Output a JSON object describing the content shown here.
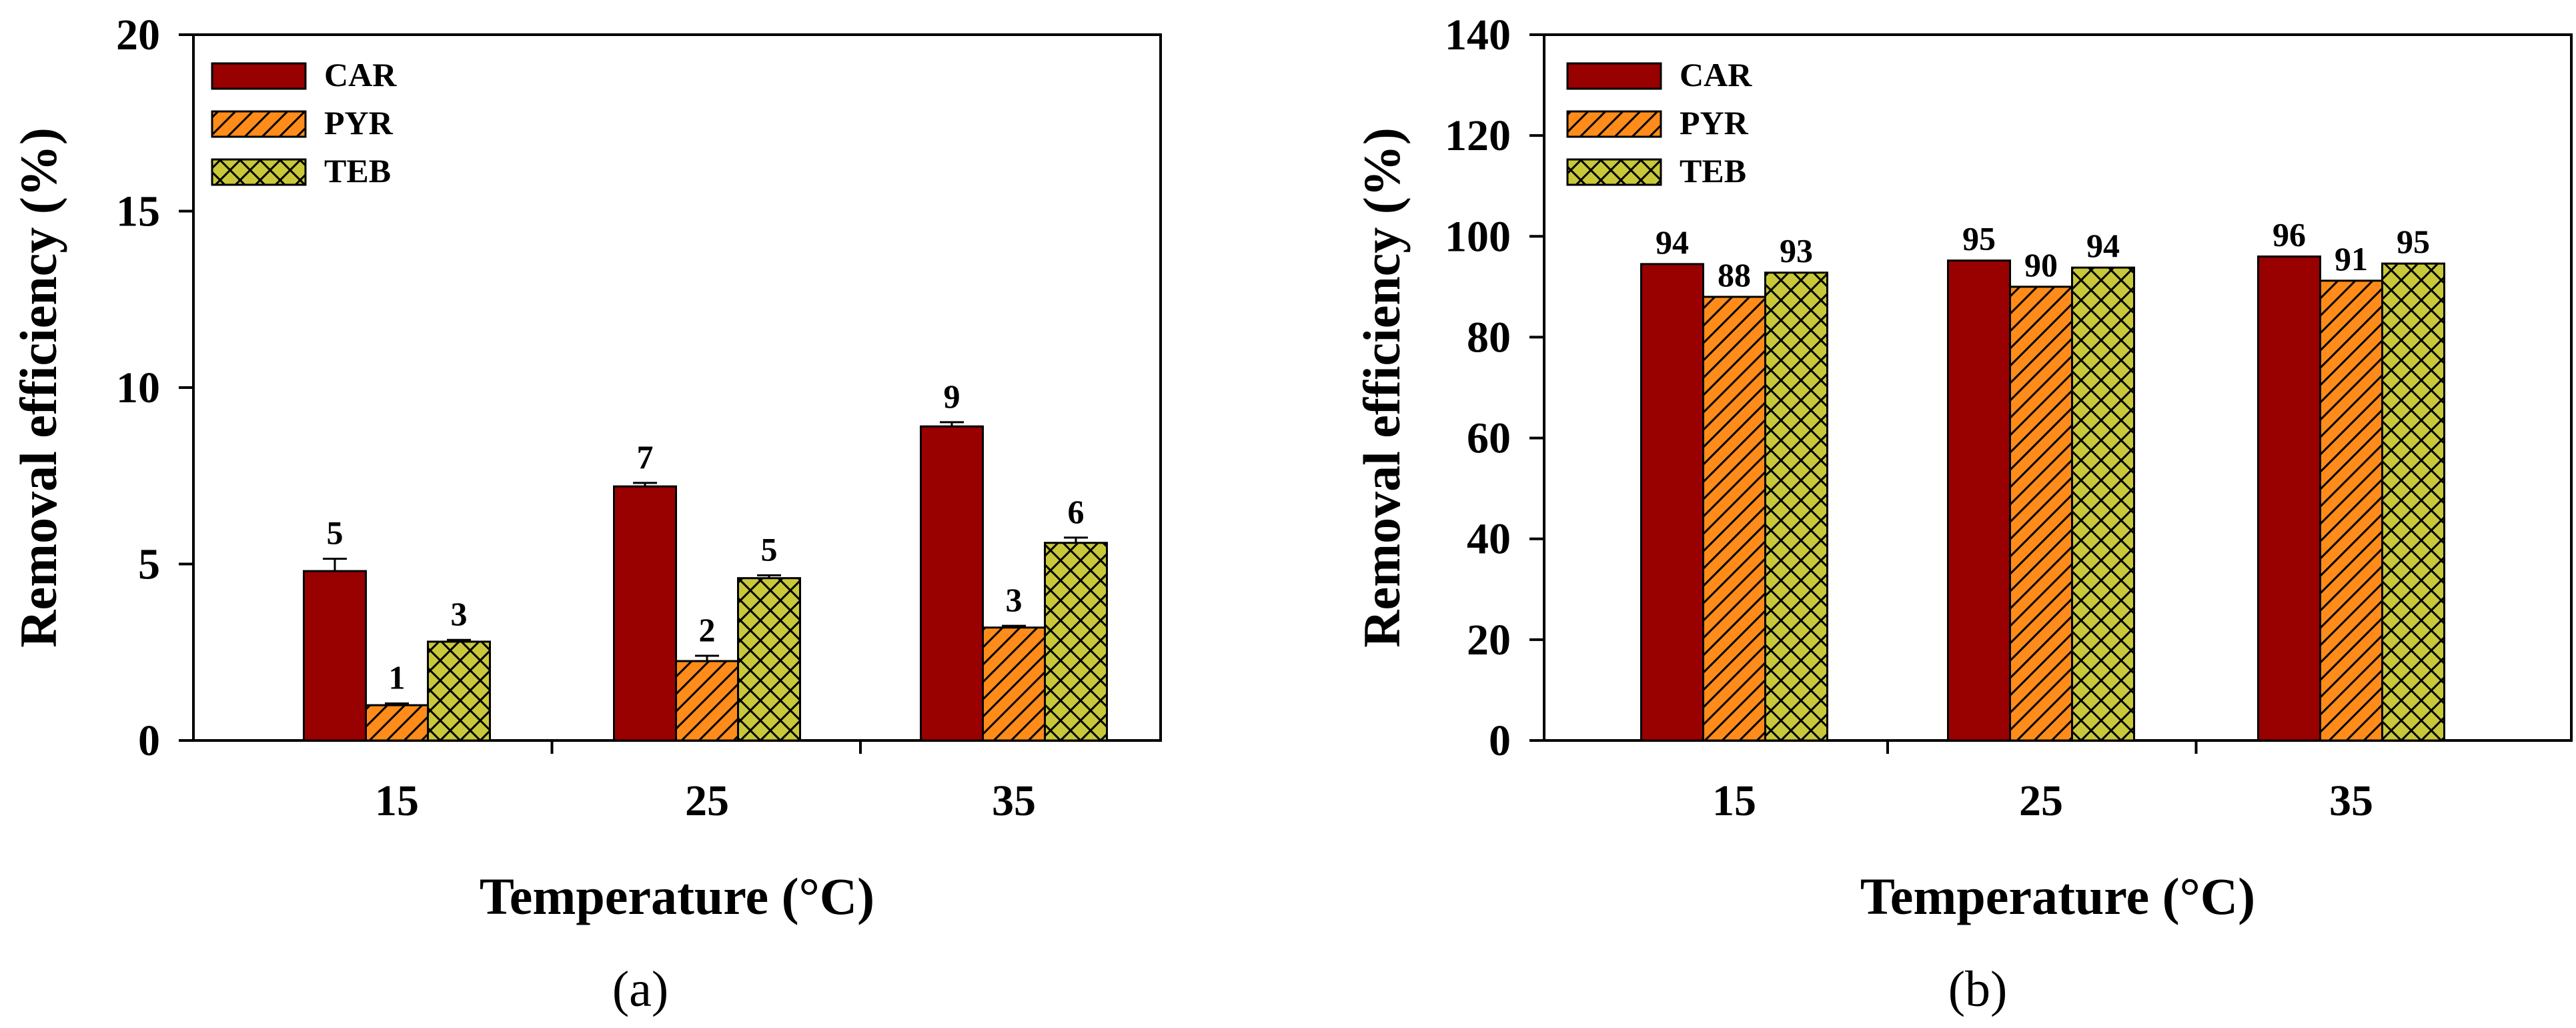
{
  "colors": {
    "CAR": "#990000",
    "PYR": "#ff8c1a",
    "TEB": "#c8c83a",
    "outline": "#000000",
    "background": "#ffffff"
  },
  "chart_data": [
    {
      "type": "bar",
      "panel_label": "(a)",
      "categories": [
        "15",
        "25",
        "35"
      ],
      "series": [
        {
          "name": "CAR",
          "pattern": "solid",
          "values": [
            4.8,
            7.2,
            8.9
          ],
          "errors": [
            0.35,
            0.1,
            0.12
          ],
          "labels": [
            "5",
            "7",
            "9"
          ]
        },
        {
          "name": "PYR",
          "pattern": "hatch",
          "values": [
            1.0,
            2.25,
            3.2
          ],
          "errors": [
            0.05,
            0.15,
            0.05
          ],
          "labels": [
            "1",
            "2",
            "3"
          ]
        },
        {
          "name": "TEB",
          "pattern": "crosshatch",
          "values": [
            2.8,
            4.6,
            5.6
          ],
          "errors": [
            0.05,
            0.08,
            0.15
          ],
          "labels": [
            "3",
            "5",
            "6"
          ]
        }
      ],
      "xlabel": "Temperature (°C)",
      "ylabel": "Removal efficiency (%)",
      "ylim": [
        0,
        20
      ],
      "yticks": [
        "0",
        "5",
        "10",
        "15",
        "20"
      ],
      "legend": [
        "CAR",
        "PYR",
        "TEB"
      ],
      "legend_position": "top-left"
    },
    {
      "type": "bar",
      "panel_label": "(b)",
      "categories": [
        "15",
        "25",
        "35"
      ],
      "series": [
        {
          "name": "CAR",
          "pattern": "solid",
          "values": [
            94.5,
            95.2,
            96.0
          ],
          "errors": [
            0,
            0,
            0
          ],
          "labels": [
            "94",
            "95",
            "96"
          ]
        },
        {
          "name": "PYR",
          "pattern": "hatch",
          "values": [
            88.0,
            90.0,
            91.2
          ],
          "errors": [
            0,
            0,
            0
          ],
          "labels": [
            "88",
            "90",
            "91"
          ]
        },
        {
          "name": "TEB",
          "pattern": "crosshatch",
          "values": [
            92.8,
            93.8,
            94.6
          ],
          "errors": [
            0,
            0,
            0
          ],
          "labels": [
            "93",
            "94",
            "95"
          ]
        }
      ],
      "xlabel": "Temperature (°C)",
      "ylabel": "Removal efficiency (%)",
      "ylim": [
        0,
        140
      ],
      "yticks": [
        "0",
        "20",
        "40",
        "60",
        "80",
        "100",
        "120",
        "140"
      ],
      "legend": [
        "CAR",
        "PYR",
        "TEB"
      ],
      "legend_position": "top-left"
    }
  ]
}
